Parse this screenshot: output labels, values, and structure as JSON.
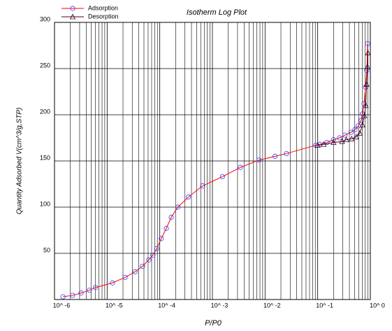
{
  "chart_data": {
    "type": "line",
    "title": "Isotherm Log Plot",
    "x_label": "P/P0",
    "y_label": "Quantity Adsorbed V(cm^3/g,STP)",
    "x_scale": "log",
    "xlim": [
      1e-06,
      1
    ],
    "ylim": [
      0,
      300
    ],
    "xticks": [
      {
        "value": 1e-06,
        "label": "10^ -6"
      },
      {
        "value": 1e-05,
        "label": "10^ -5"
      },
      {
        "value": 0.0001,
        "label": "10^ -4"
      },
      {
        "value": 0.001,
        "label": "10^ -3"
      },
      {
        "value": 0.01,
        "label": "10^ -2"
      },
      {
        "value": 0.1,
        "label": "10^ -1"
      },
      {
        "value": 1,
        "label": "10^ 0"
      }
    ],
    "yticks": [
      50,
      100,
      150,
      200,
      250,
      300
    ],
    "grid": true,
    "legend": "top-left",
    "series": [
      {
        "name": "Adsorption",
        "color": "#ff0000",
        "marker": "circle",
        "marker_color": "#4040ff",
        "x": [
          1.45e-06,
          2.2e-06,
          3.2e-06,
          4.6e-06,
          6e-06,
          1.26e-05,
          2.2e-05,
          3.4e-05,
          4.7e-05,
          6.2e-05,
          7.4e-05,
          8.7e-05,
          0.000107,
          0.000133,
          0.000165,
          0.00022,
          0.00035,
          0.00065,
          0.00155,
          0.0034,
          0.0077,
          0.0155,
          0.0255,
          0.092,
          0.11,
          0.15,
          0.2,
          0.26,
          0.33,
          0.43,
          0.51,
          0.59,
          0.67,
          0.71,
          0.76,
          0.81,
          0.86,
          0.89
        ],
        "values": [
          3,
          4.5,
          7,
          10,
          13,
          18,
          24,
          30,
          36,
          43,
          48,
          55,
          66,
          77,
          89,
          100,
          111,
          123,
          133,
          143,
          151,
          155,
          158,
          167,
          168,
          170,
          173,
          175,
          178,
          181,
          184,
          188,
          194,
          201,
          212,
          230,
          248,
          277
        ]
      },
      {
        "name": "Desorption",
        "color": "#600000",
        "marker": "triangle",
        "marker_color": "#300030",
        "x": [
          0.9,
          0.88,
          0.85,
          0.82,
          0.77,
          0.71,
          0.63,
          0.54,
          0.44,
          0.35,
          0.29,
          0.2,
          0.13,
          0.1
        ],
        "values": [
          267,
          252,
          233,
          210,
          199,
          189,
          180,
          176,
          174,
          173,
          171,
          170,
          168,
          167
        ]
      }
    ]
  }
}
